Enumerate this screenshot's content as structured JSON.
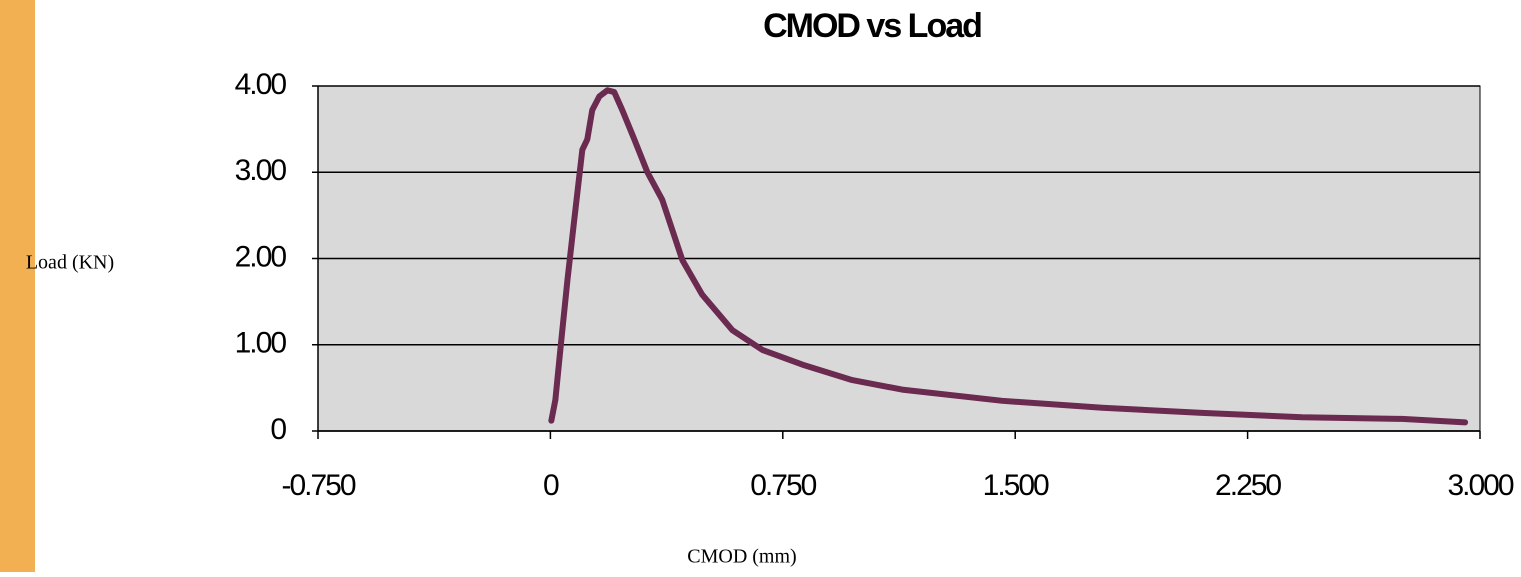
{
  "chart_data": {
    "type": "line",
    "title": "CMOD vs Load",
    "xlabel": "CMOD (mm)",
    "ylabel": "Load (KN)",
    "x": [
      0.003,
      0.016,
      0.032,
      0.055,
      0.077,
      0.103,
      0.119,
      0.135,
      0.158,
      0.184,
      0.206,
      0.232,
      0.271,
      0.313,
      0.361,
      0.426,
      0.49,
      0.587,
      0.684,
      0.813,
      0.974,
      1.135,
      1.458,
      1.781,
      2.103,
      2.426,
      2.748,
      2.952
    ],
    "values": [
      0.12,
      0.36,
      0.94,
      1.75,
      2.45,
      3.26,
      3.38,
      3.72,
      3.88,
      3.95,
      3.93,
      3.72,
      3.38,
      3.0,
      2.68,
      1.98,
      1.58,
      1.17,
      0.94,
      0.77,
      0.59,
      0.48,
      0.35,
      0.27,
      0.21,
      0.16,
      0.14,
      0.1
    ],
    "color": "#6b2a4f",
    "xlim": [
      -0.75,
      3.0
    ],
    "xticks": [
      {
        "value": -0.75,
        "label": "-0.750"
      },
      0,
      {
        "value": 0.75,
        "label": "0.750"
      },
      {
        "value": 1.5,
        "label": "1.500"
      },
      {
        "value": 2.25,
        "label": "2.250"
      },
      {
        "value": 3.0,
        "label": "3.000"
      }
    ],
    "ylim": [
      0,
      4
    ],
    "yticks": [
      0,
      {
        "value": 1,
        "label": "1.00"
      },
      {
        "value": 2,
        "label": "2.00"
      },
      {
        "value": 3,
        "label": "3.00"
      },
      {
        "value": 4,
        "label": "4.00"
      }
    ],
    "grid": true
  }
}
